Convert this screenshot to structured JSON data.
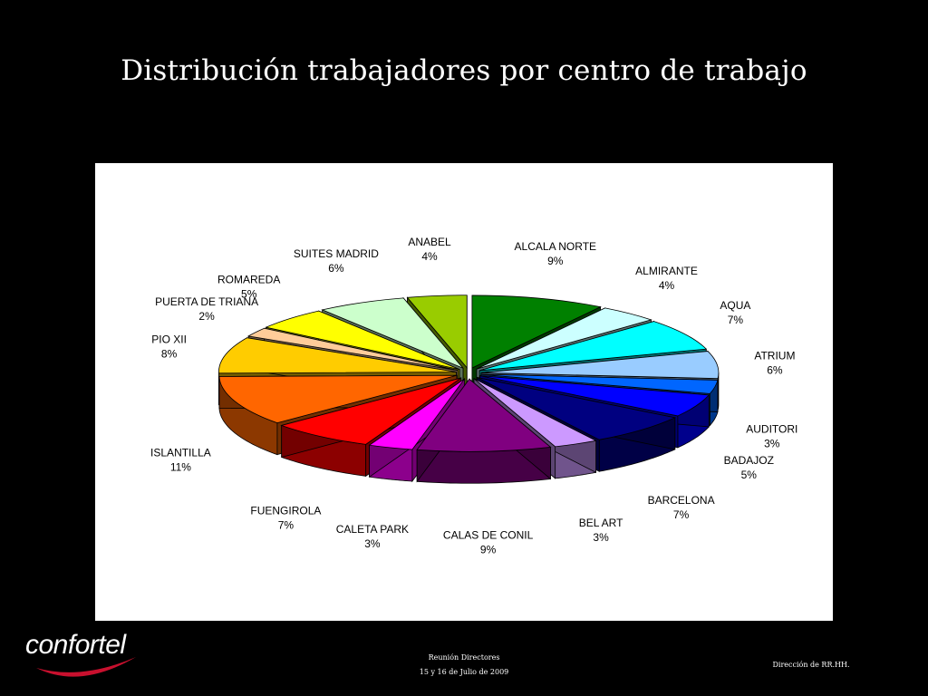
{
  "slide": {
    "title": "Distribución trabajadores por centro de trabajo"
  },
  "brand": {
    "logo_text": "confortel",
    "accent_color": "#c8102e"
  },
  "footer": {
    "meeting": "Reunión Directores",
    "dates": "15 y 16 de Julio de 2009",
    "department": "Dirección de RR.HH."
  },
  "chart_data": {
    "type": "pie",
    "style": "3d-exploded",
    "title": "",
    "series": [
      {
        "categories": [
          "ALCALA NORTE",
          "ALMIRANTE",
          "AQUA",
          "ATRIUM",
          "AUDITORI",
          "BADAJOZ",
          "BARCELONA",
          "BEL ART",
          "CALAS DE CONIL",
          "CALETA PARK",
          "FUENGIROLA",
          "ISLANTILLA",
          "PIO XII",
          "PUERTA DE TRIANA",
          "ROMAREDA",
          "SUITES MADRID",
          "ANABEL"
        ],
        "values": [
          9,
          4,
          7,
          6,
          3,
          5,
          7,
          3,
          9,
          3,
          7,
          11,
          8,
          2,
          5,
          6,
          4
        ],
        "labels": [
          "9%",
          "4%",
          "7%",
          "6%",
          "3%",
          "5%",
          "7%",
          "3%",
          "9%",
          "3%",
          "7%",
          "11%",
          "8%",
          "2%",
          "5%",
          "6%",
          "4%"
        ],
        "colors": [
          "#008000",
          "#ccffff",
          "#00ffff",
          "#99ccff",
          "#0066ff",
          "#0000ff",
          "#000080",
          "#cc99ff",
          "#800080",
          "#ff00ff",
          "#ff0000",
          "#ff6600",
          "#ffcc00",
          "#ffcc99",
          "#ffff00",
          "#ccffcc",
          "#99cc00"
        ]
      }
    ],
    "legend": "none",
    "data_labels": "category-and-percent"
  }
}
